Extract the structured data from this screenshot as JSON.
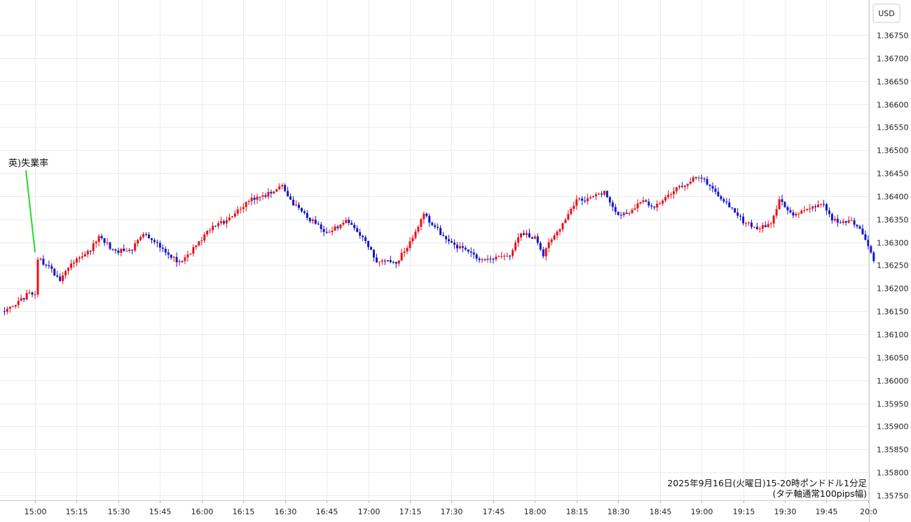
{
  "chart_data": {
    "type": "candlestick",
    "currency": "USD",
    "y_ticks": [
      "1.36750",
      "1.36700",
      "1.36650",
      "1.36600",
      "1.36550",
      "1.36500",
      "1.36450",
      "1.36400",
      "1.36350",
      "1.36300",
      "1.36250",
      "1.36200",
      "1.36150",
      "1.36100",
      "1.36050",
      "1.36000",
      "1.35950",
      "1.35900",
      "1.35850",
      "1.35800",
      "1.35750"
    ],
    "ylim": [
      1.3575,
      1.3675
    ],
    "x_ticks": [
      "15:00",
      "15:15",
      "15:30",
      "15:45",
      "16:00",
      "16:15",
      "16:30",
      "16:45",
      "17:00",
      "17:15",
      "17:30",
      "17:45",
      "18:00",
      "18:15",
      "18:30",
      "18:45",
      "19:00",
      "19:15",
      "19:30",
      "19:45",
      "20:0"
    ],
    "x_range_minutes": [
      -11,
      302
    ],
    "grid": true,
    "annotation": {
      "text": "英)失業率",
      "time_minute": 0
    },
    "caption_lines": [
      "2025年9月16日(火曜日)15-20時ポンドドル1分足",
      "(タテ軸通常100pips幅)"
    ],
    "up_color": "#e8101a",
    "down_color": "#1515c8",
    "annotation_color": "#22dd22",
    "anchor_prices": [
      {
        "minute": -11,
        "price": 1.3615
      },
      {
        "minute": -6,
        "price": 1.3617
      },
      {
        "minute": -3,
        "price": 1.36185
      },
      {
        "minute": 0,
        "price": 1.3619
      },
      {
        "minute": 1,
        "price": 1.36265
      },
      {
        "minute": 4,
        "price": 1.3625
      },
      {
        "minute": 9,
        "price": 1.3622
      },
      {
        "minute": 13,
        "price": 1.36255
      },
      {
        "minute": 20,
        "price": 1.36285
      },
      {
        "minute": 23,
        "price": 1.3631
      },
      {
        "minute": 29,
        "price": 1.3628
      },
      {
        "minute": 35,
        "price": 1.36285
      },
      {
        "minute": 39,
        "price": 1.3632
      },
      {
        "minute": 44,
        "price": 1.36295
      },
      {
        "minute": 52,
        "price": 1.36255
      },
      {
        "minute": 57,
        "price": 1.36285
      },
      {
        "minute": 63,
        "price": 1.3633
      },
      {
        "minute": 70,
        "price": 1.3635
      },
      {
        "minute": 78,
        "price": 1.36395
      },
      {
        "minute": 82,
        "price": 1.364
      },
      {
        "minute": 89,
        "price": 1.3642
      },
      {
        "minute": 92,
        "price": 1.3639
      },
      {
        "minute": 98,
        "price": 1.36355
      },
      {
        "minute": 105,
        "price": 1.3632
      },
      {
        "minute": 112,
        "price": 1.36345
      },
      {
        "minute": 118,
        "price": 1.3631
      },
      {
        "minute": 123,
        "price": 1.3626
      },
      {
        "minute": 130,
        "price": 1.36255
      },
      {
        "minute": 135,
        "price": 1.363
      },
      {
        "minute": 140,
        "price": 1.3636
      },
      {
        "minute": 146,
        "price": 1.3632
      },
      {
        "minute": 152,
        "price": 1.3629
      },
      {
        "minute": 160,
        "price": 1.36265
      },
      {
        "minute": 165,
        "price": 1.36265
      },
      {
        "minute": 171,
        "price": 1.3627
      },
      {
        "minute": 175,
        "price": 1.3632
      },
      {
        "minute": 180,
        "price": 1.3631
      },
      {
        "minute": 183,
        "price": 1.3627
      },
      {
        "minute": 185,
        "price": 1.363
      },
      {
        "minute": 190,
        "price": 1.3634
      },
      {
        "minute": 195,
        "price": 1.3639
      },
      {
        "minute": 200,
        "price": 1.36395
      },
      {
        "minute": 205,
        "price": 1.3641
      },
      {
        "minute": 210,
        "price": 1.3636
      },
      {
        "minute": 214,
        "price": 1.36365
      },
      {
        "minute": 218,
        "price": 1.3639
      },
      {
        "minute": 223,
        "price": 1.36375
      },
      {
        "minute": 227,
        "price": 1.36395
      },
      {
        "minute": 232,
        "price": 1.3642
      },
      {
        "minute": 238,
        "price": 1.3644
      },
      {
        "minute": 241,
        "price": 1.36435
      },
      {
        "minute": 245,
        "price": 1.3641
      },
      {
        "minute": 250,
        "price": 1.3638
      },
      {
        "minute": 255,
        "price": 1.36345
      },
      {
        "minute": 260,
        "price": 1.3633
      },
      {
        "minute": 265,
        "price": 1.3634
      },
      {
        "minute": 268,
        "price": 1.3639
      },
      {
        "minute": 273,
        "price": 1.3636
      },
      {
        "minute": 280,
        "price": 1.36375
      },
      {
        "minute": 284,
        "price": 1.3638
      },
      {
        "minute": 287,
        "price": 1.3635
      },
      {
        "minute": 290,
        "price": 1.3634
      },
      {
        "minute": 294,
        "price": 1.36345
      },
      {
        "minute": 297,
        "price": 1.3633
      },
      {
        "minute": 300,
        "price": 1.3629
      },
      {
        "minute": 302,
        "price": 1.3626
      }
    ]
  }
}
